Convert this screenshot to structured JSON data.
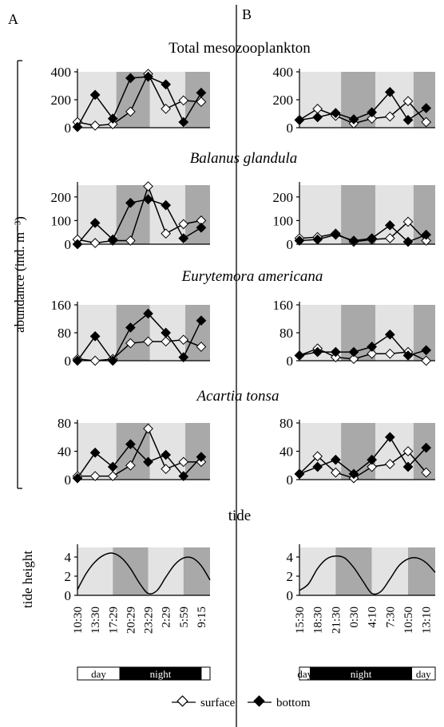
{
  "panel_labels": [
    "A",
    "B"
  ],
  "row_titles": [
    "Total mesozooplankton",
    "Balanus glandula",
    "Eurytemora americana",
    "Acartia tonsa",
    "tide"
  ],
  "row_titles_italic": [
    false,
    true,
    true,
    true,
    false
  ],
  "y_axis_label": "abundance (ind. m⁻³)",
  "tide_axis_label": "tide height",
  "time_labels": {
    "A": [
      "10:30",
      "13:30",
      "17:29",
      "20:29",
      "23:29",
      "2:29",
      "5:59",
      "9:15"
    ],
    "B": [
      "15:30",
      "18:30",
      "21:30",
      "0:30",
      "4:10",
      "7:30",
      "10:50",
      "13:10"
    ]
  },
  "daynight_bar": {
    "A": [
      {
        "label": "day",
        "state": "day",
        "span": [
          0,
          1.2
        ]
      },
      {
        "label": "night",
        "state": "night",
        "span": [
          1.2,
          3.5
        ]
      },
      {
        "label": "",
        "state": "day",
        "span": [
          3.5,
          3.75
        ]
      }
    ],
    "B": [
      {
        "label": "day",
        "state": "day",
        "span": [
          0,
          0.3
        ]
      },
      {
        "label": "night",
        "state": "night",
        "span": [
          0.3,
          3.1
        ]
      },
      {
        "label": "day",
        "state": "day",
        "span": [
          3.1,
          3.75
        ]
      }
    ]
  },
  "legend": {
    "surface": "surface",
    "bottom": "bottom"
  },
  "colors": {
    "light_shade": "#e3e3e3",
    "dark_shade": "#a9a9a9",
    "line": "#000000",
    "surface_fill": "#ffffff",
    "bottom_fill": "#000000"
  },
  "chart_data": [
    {
      "type": "line",
      "panel": "A",
      "row": "Total mesozooplankton",
      "x": [
        0,
        0.5,
        1,
        1.5,
        2,
        2.5,
        3,
        3.5
      ],
      "ylim": [
        0,
        400
      ],
      "yticks": [
        0,
        200,
        400
      ],
      "shading": [
        [
          "light",
          0,
          1.1
        ],
        [
          "dark",
          1.1,
          2.05
        ],
        [
          "light",
          2.05,
          3.05
        ],
        [
          "dark",
          3.05,
          3.75
        ]
      ],
      "series": [
        {
          "name": "surface",
          "values": [
            40,
            15,
            25,
            115,
            385,
            135,
            195,
            185
          ]
        },
        {
          "name": "bottom",
          "values": [
            5,
            235,
            65,
            355,
            365,
            310,
            40,
            250
          ]
        }
      ]
    },
    {
      "type": "line",
      "panel": "B",
      "row": "Total mesozooplankton",
      "x": [
        0,
        0.5,
        1,
        1.5,
        2,
        2.5,
        3,
        3.5
      ],
      "ylim": [
        0,
        400
      ],
      "yticks": [
        0,
        200,
        400
      ],
      "shading": [
        [
          "light",
          0,
          1.15
        ],
        [
          "dark",
          1.15,
          2.1
        ],
        [
          "light",
          2.1,
          3.15
        ],
        [
          "dark",
          3.15,
          3.75
        ]
      ],
      "series": [
        {
          "name": "surface",
          "values": [
            55,
            135,
            85,
            30,
            65,
            80,
            190,
            40
          ]
        },
        {
          "name": "bottom",
          "values": [
            55,
            75,
            105,
            60,
            110,
            255,
            55,
            140
          ]
        }
      ]
    },
    {
      "type": "line",
      "panel": "A",
      "row": "Balanus glandula",
      "x": [
        0,
        0.5,
        1,
        1.5,
        2,
        2.5,
        3,
        3.5
      ],
      "ylim": [
        0,
        250
      ],
      "yticks": [
        0,
        100,
        200
      ],
      "shading": [
        [
          "light",
          0,
          1.1
        ],
        [
          "dark",
          1.1,
          2.05
        ],
        [
          "light",
          2.05,
          3.05
        ],
        [
          "dark",
          3.05,
          3.75
        ]
      ],
      "series": [
        {
          "name": "surface",
          "values": [
            20,
            5,
            15,
            15,
            245,
            45,
            85,
            100
          ]
        },
        {
          "name": "bottom",
          "values": [
            0,
            90,
            20,
            175,
            190,
            165,
            25,
            70
          ]
        }
      ]
    },
    {
      "type": "line",
      "panel": "B",
      "row": "Balanus glandula",
      "x": [
        0,
        0.5,
        1,
        1.5,
        2,
        2.5,
        3,
        3.5
      ],
      "ylim": [
        0,
        250
      ],
      "yticks": [
        0,
        100,
        200
      ],
      "shading": [
        [
          "light",
          0,
          1.15
        ],
        [
          "dark",
          1.15,
          2.1
        ],
        [
          "light",
          2.1,
          3.15
        ],
        [
          "dark",
          3.15,
          3.75
        ]
      ],
      "series": [
        {
          "name": "surface",
          "values": [
            25,
            30,
            45,
            10,
            20,
            25,
            95,
            15
          ]
        },
        {
          "name": "bottom",
          "values": [
            15,
            20,
            40,
            15,
            25,
            80,
            10,
            40
          ]
        }
      ]
    },
    {
      "type": "line",
      "panel": "A",
      "row": "Eurytemora americana",
      "x": [
        0,
        0.5,
        1,
        1.5,
        2,
        2.5,
        3,
        3.5
      ],
      "ylim": [
        0,
        160
      ],
      "yticks": [
        0,
        80,
        160
      ],
      "shading": [
        [
          "light",
          0,
          1.1
        ],
        [
          "dark",
          1.1,
          2.05
        ],
        [
          "light",
          2.05,
          3.05
        ],
        [
          "dark",
          3.05,
          3.75
        ]
      ],
      "series": [
        {
          "name": "surface",
          "values": [
            5,
            0,
            5,
            50,
            55,
            55,
            60,
            40
          ]
        },
        {
          "name": "bottom",
          "values": [
            0,
            70,
            0,
            95,
            135,
            80,
            10,
            115
          ]
        }
      ]
    },
    {
      "type": "line",
      "panel": "B",
      "row": "Eurytemora americana",
      "x": [
        0,
        0.5,
        1,
        1.5,
        2,
        2.5,
        3,
        3.5
      ],
      "ylim": [
        0,
        160
      ],
      "yticks": [
        0,
        80,
        160
      ],
      "shading": [
        [
          "light",
          0,
          1.15
        ],
        [
          "dark",
          1.15,
          2.1
        ],
        [
          "light",
          2.1,
          3.15
        ],
        [
          "dark",
          3.15,
          3.75
        ]
      ],
      "series": [
        {
          "name": "surface",
          "values": [
            15,
            35,
            10,
            5,
            20,
            20,
            25,
            0
          ]
        },
        {
          "name": "bottom",
          "values": [
            15,
            25,
            25,
            25,
            40,
            75,
            15,
            30
          ]
        }
      ]
    },
    {
      "type": "line",
      "panel": "A",
      "row": "Acartia tonsa",
      "x": [
        0,
        0.5,
        1,
        1.5,
        2,
        2.5,
        3,
        3.5
      ],
      "ylim": [
        0,
        80
      ],
      "yticks": [
        0,
        40,
        80
      ],
      "shading": [
        [
          "light",
          0,
          1.1
        ],
        [
          "dark",
          1.1,
          2.05
        ],
        [
          "light",
          2.05,
          3.05
        ],
        [
          "dark",
          3.05,
          3.75
        ]
      ],
      "series": [
        {
          "name": "surface",
          "values": [
            5,
            5,
            5,
            20,
            72,
            15,
            25,
            25
          ]
        },
        {
          "name": "bottom",
          "values": [
            2,
            38,
            18,
            50,
            25,
            35,
            5,
            32
          ]
        }
      ]
    },
    {
      "type": "line",
      "panel": "B",
      "row": "Acartia tonsa",
      "x": [
        0,
        0.5,
        1,
        1.5,
        2,
        2.5,
        3,
        3.5
      ],
      "ylim": [
        0,
        80
      ],
      "yticks": [
        0,
        40,
        80
      ],
      "shading": [
        [
          "light",
          0,
          1.15
        ],
        [
          "dark",
          1.15,
          2.1
        ],
        [
          "light",
          2.1,
          3.15
        ],
        [
          "dark",
          3.15,
          3.75
        ]
      ],
      "series": [
        {
          "name": "surface",
          "values": [
            8,
            33,
            10,
            2,
            18,
            22,
            40,
            10
          ]
        },
        {
          "name": "bottom",
          "values": [
            8,
            18,
            28,
            8,
            28,
            60,
            18,
            45
          ]
        }
      ]
    },
    {
      "type": "line",
      "panel": "A",
      "row": "tide",
      "ylim": [
        0,
        5
      ],
      "yticks": [
        0,
        2,
        4
      ],
      "shading": [
        [
          "light",
          0,
          1.0
        ],
        [
          "dark",
          1.0,
          2.0
        ],
        [
          "light",
          2.0,
          3.0
        ],
        [
          "dark",
          3.0,
          3.75
        ]
      ],
      "series": [
        {
          "name": "tide height",
          "x": [
            0,
            0.25,
            0.5,
            0.75,
            1.0,
            1.25,
            1.5,
            1.75,
            2.0,
            2.25,
            2.5,
            2.75,
            3.0,
            3.25,
            3.5,
            3.75
          ],
          "values": [
            0.6,
            2.3,
            3.5,
            4.2,
            4.4,
            3.9,
            2.8,
            1.3,
            0.2,
            0.5,
            1.9,
            3.2,
            3.9,
            3.9,
            3.1,
            1.6
          ]
        }
      ]
    },
    {
      "type": "line",
      "panel": "B",
      "row": "tide",
      "ylim": [
        0,
        5
      ],
      "yticks": [
        0,
        2,
        4
      ],
      "shading": [
        [
          "light",
          0,
          1.0
        ],
        [
          "dark",
          1.0,
          2.0
        ],
        [
          "light",
          2.0,
          3.0
        ],
        [
          "dark",
          3.0,
          3.75
        ]
      ],
      "series": [
        {
          "name": "tide height",
          "x": [
            0,
            0.25,
            0.5,
            0.75,
            1.0,
            1.25,
            1.5,
            1.75,
            2.0,
            2.25,
            2.5,
            2.75,
            3.0,
            3.25,
            3.5,
            3.75
          ],
          "values": [
            0.5,
            1.2,
            2.8,
            3.8,
            4.1,
            3.9,
            2.9,
            1.5,
            0.2,
            0.4,
            1.7,
            3.1,
            3.8,
            3.9,
            3.4,
            2.4
          ]
        }
      ]
    }
  ]
}
